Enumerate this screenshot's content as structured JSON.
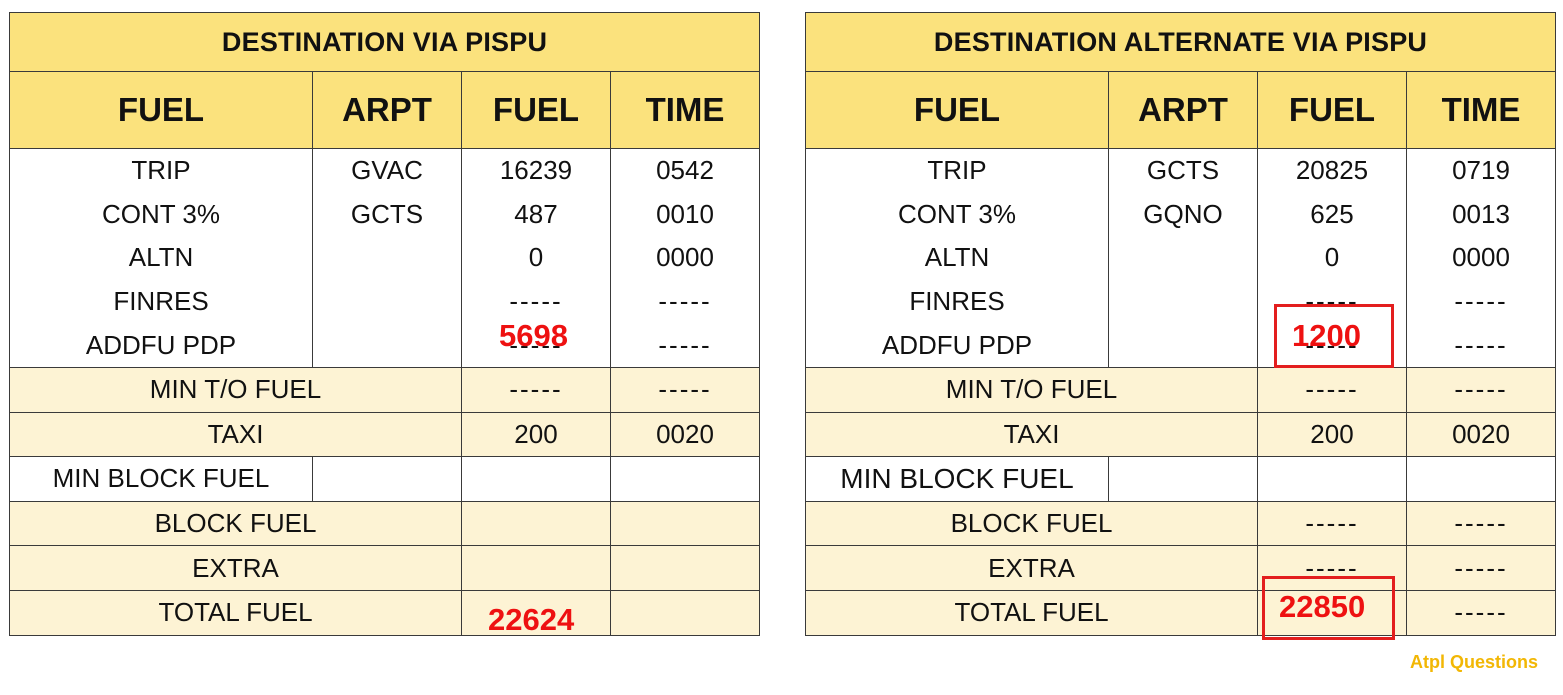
{
  "left": {
    "title": "DESTINATION VIA PISPU",
    "headers": [
      "FUEL",
      "ARPT",
      "FUEL",
      "TIME"
    ],
    "rows": [
      {
        "label": "TRIP",
        "arpt": "GVAC",
        "fuel": "16239",
        "time": "0542"
      },
      {
        "label": "CONT 3%",
        "arpt": "GCTS",
        "fuel": "487",
        "time": "0010"
      },
      {
        "label": "ALTN",
        "arpt": "",
        "fuel": "0",
        "time": "0000"
      },
      {
        "label": "FINRES",
        "arpt": "",
        "fuel": "-----",
        "time": "-----"
      },
      {
        "label": "ADDFU PDP",
        "arpt": "",
        "fuel": "-----",
        "time": "-----"
      }
    ],
    "min_to_fuel": {
      "label": "MIN T/O FUEL",
      "fuel": "-----",
      "time": "-----"
    },
    "taxi": {
      "label": "TAXI",
      "fuel": "200",
      "time": "0020"
    },
    "min_block_fuel": {
      "label": "MIN BLOCK FUEL",
      "fuel": "",
      "time": ""
    },
    "block_fuel": {
      "label": "BLOCK FUEL",
      "fuel": "",
      "time": ""
    },
    "extra": {
      "label": "EXTRA",
      "fuel": "",
      "time": ""
    },
    "total_fuel": {
      "label": "TOTAL FUEL",
      "fuel": "",
      "time": ""
    },
    "annotations": {
      "addfu": "5698",
      "total": "22624"
    }
  },
  "right": {
    "title": "DESTINATION ALTERNATE VIA PISPU",
    "headers": [
      "FUEL",
      "ARPT",
      "FUEL",
      "TIME"
    ],
    "rows": [
      {
        "label": "TRIP",
        "arpt": "GCTS",
        "fuel": "20825",
        "time": "0719"
      },
      {
        "label": "CONT 3%",
        "arpt": "GQNO",
        "fuel": "625",
        "time": "0013"
      },
      {
        "label": "ALTN",
        "arpt": "",
        "fuel": "0",
        "time": "0000"
      },
      {
        "label": "FINRES",
        "arpt": "",
        "fuel": "-----",
        "time": "-----"
      },
      {
        "label": "ADDFU PDP",
        "arpt": "",
        "fuel": "-----",
        "time": "-----"
      }
    ],
    "min_to_fuel": {
      "label": "MIN T/O FUEL",
      "fuel": "-----",
      "time": "-----"
    },
    "taxi": {
      "label": "TAXI",
      "fuel": "200",
      "time": "0020"
    },
    "min_block_fuel": {
      "label": "MIN BLOCK FUEL",
      "fuel": "",
      "time": ""
    },
    "block_fuel": {
      "label": "BLOCK FUEL",
      "fuel": "-----",
      "time": "-----"
    },
    "extra": {
      "label": "EXTRA",
      "fuel": "-----",
      "time": "-----"
    },
    "total_fuel": {
      "label": "TOTAL FUEL",
      "fuel": "",
      "time": "-----"
    },
    "annotations": {
      "addfu": "1200",
      "total": "22850"
    }
  },
  "watermark": {
    "text": "Atpl Questions"
  },
  "colors": {
    "header_bg": "#fbe27d",
    "band_bg": "#fdf3d4",
    "annotation": "#ee1111",
    "watermark": "#f2b705"
  }
}
